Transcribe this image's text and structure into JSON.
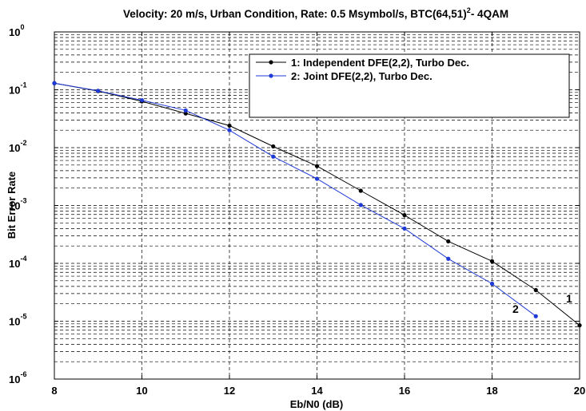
{
  "chart_data": {
    "type": "line",
    "title": "Velocity: 20 m/s, Urban Condition, Rate: 0.5 Msymbol/s, BTC(64,51)",
    "title_sup": "2",
    "title_suffix": "- 4QAM",
    "xlabel": "Eb/N0 (dB)",
    "ylabel": "Bit Error Rate",
    "xlim": [
      8,
      20
    ],
    "ylim": [
      1e-06,
      1
    ],
    "yscale": "log",
    "grid": true,
    "legend_position": "top-right",
    "x_ticks": [
      8,
      10,
      12,
      14,
      16,
      18,
      20
    ],
    "x_tick_labels": [
      "8",
      "10",
      "12",
      "14",
      "16",
      "18",
      "20"
    ],
    "y_ticks": [
      {
        "value": 1,
        "base": "10",
        "exp": "0"
      },
      {
        "value": 0.1,
        "base": "10",
        "exp": "-1"
      },
      {
        "value": 0.01,
        "base": "10",
        "exp": "-2"
      },
      {
        "value": 0.001,
        "base": "10",
        "exp": "-3"
      },
      {
        "value": 0.0001,
        "base": "10",
        "exp": "-4"
      },
      {
        "value": 1e-05,
        "base": "10",
        "exp": "-5"
      },
      {
        "value": 1e-06,
        "base": "10",
        "exp": "-6"
      }
    ],
    "series": [
      {
        "name": "1: Independent DFE(2,2), Turbo Dec.",
        "color": "#000000",
        "end_label": "1",
        "x": [
          8,
          9,
          10,
          11,
          12,
          13,
          14,
          15,
          16,
          17,
          18,
          19,
          20
        ],
        "y": [
          0.13,
          0.095,
          0.063,
          0.039,
          0.024,
          0.0105,
          0.0048,
          0.0018,
          0.00068,
          0.00024,
          0.000109,
          3.45e-05,
          8.5e-06
        ]
      },
      {
        "name": "2: Joint DFE(2,2), Turbo Dec.",
        "color": "#1f3ad6",
        "end_label": "2",
        "x": [
          8,
          9,
          10,
          11,
          12,
          13,
          14,
          15,
          16,
          17,
          18,
          19
        ],
        "y": [
          0.13,
          0.096,
          0.066,
          0.044,
          0.02,
          0.007,
          0.0029,
          0.00102,
          0.0004,
          0.00012,
          4.45e-05,
          1.22e-05
        ]
      }
    ]
  }
}
